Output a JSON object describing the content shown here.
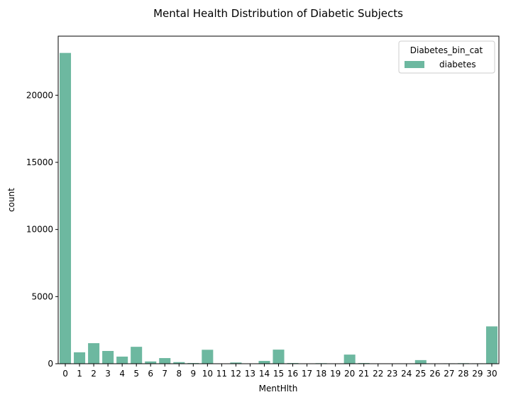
{
  "chart_data": {
    "type": "bar",
    "title": "Mental Health Distribution of Diabetic Subjects",
    "xlabel": "MentHlth",
    "ylabel": "count",
    "ylim": [
      0,
      24400
    ],
    "yticks": [
      0,
      5000,
      10000,
      15000,
      20000
    ],
    "yticks_labels": [
      "0",
      "5000",
      "10000",
      "15000",
      "20000"
    ],
    "categories": [
      "0",
      "1",
      "2",
      "3",
      "4",
      "5",
      "6",
      "7",
      "8",
      "9",
      "10",
      "11",
      "12",
      "13",
      "14",
      "15",
      "16",
      "17",
      "18",
      "19",
      "20",
      "21",
      "22",
      "23",
      "24",
      "25",
      "26",
      "27",
      "28",
      "29",
      "30"
    ],
    "series": [
      {
        "name": "diabetes",
        "color": "#6db8a0",
        "values": [
          23150,
          850,
          1530,
          950,
          530,
          1260,
          170,
          420,
          120,
          50,
          1040,
          20,
          90,
          15,
          210,
          1050,
          50,
          20,
          40,
          10,
          680,
          50,
          20,
          15,
          10,
          270,
          10,
          30,
          40,
          30,
          2780
        ]
      }
    ],
    "legend": {
      "title": "Diabetes_bin_cat",
      "position": "top-right"
    },
    "grid": false
  }
}
